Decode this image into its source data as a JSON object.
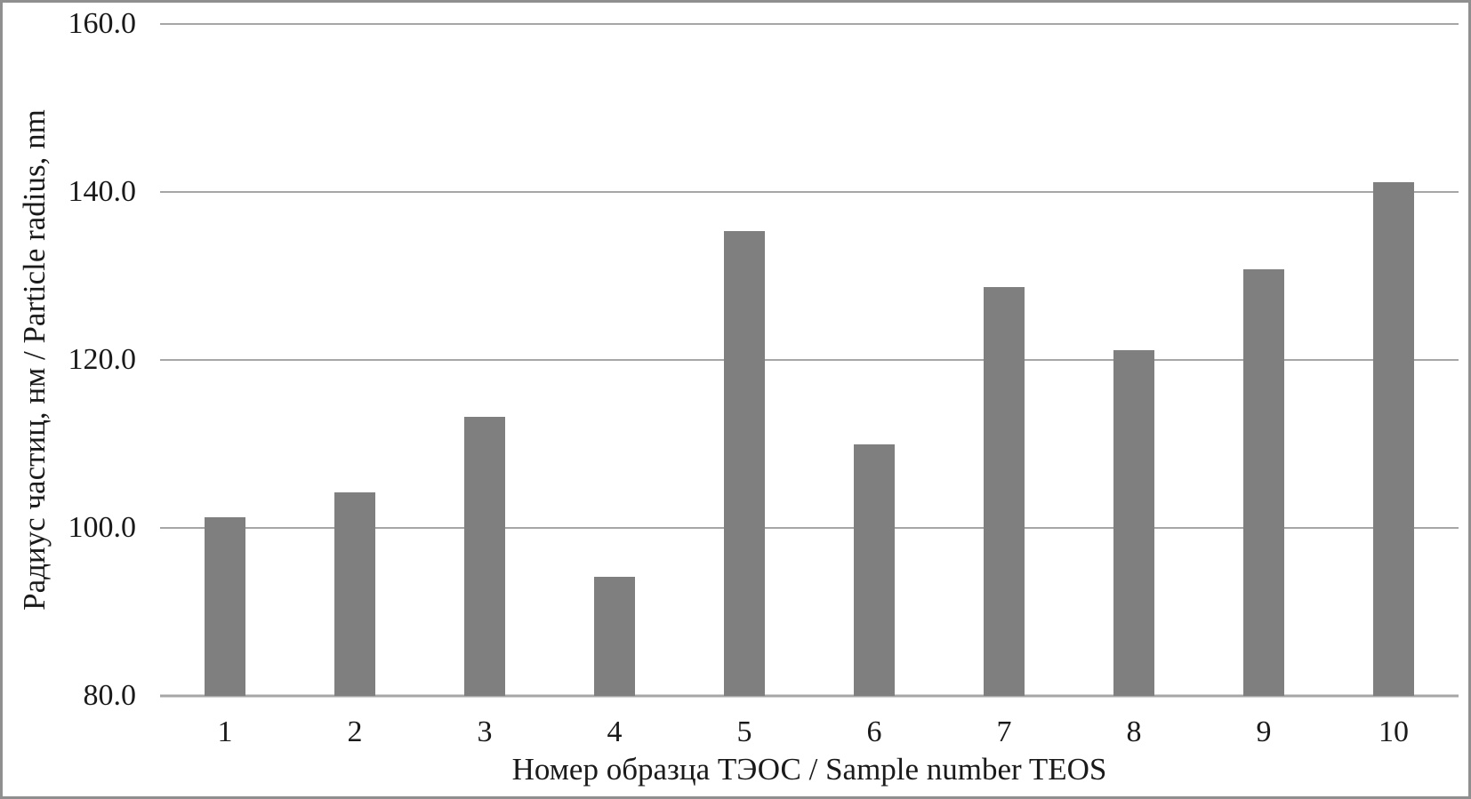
{
  "chart_data": {
    "type": "bar",
    "title": "",
    "xlabel": "Номер образца ТЭОС / Sample number TEOS",
    "ylabel": "Радиус частиц, нм / Particle radius, nm",
    "categories": [
      "1",
      "2",
      "3",
      "4",
      "5",
      "6",
      "7",
      "8",
      "9",
      "10"
    ],
    "values": [
      101.3,
      104.2,
      113.2,
      94.2,
      135.3,
      110.0,
      128.7,
      121.2,
      130.8,
      141.2
    ],
    "ylim": [
      80,
      160
    ],
    "yticks": [
      80,
      100,
      120,
      140,
      160
    ],
    "ytick_labels": [
      "80.0",
      "100.0",
      "120.0",
      "140.0",
      "160.0"
    ],
    "grid": true,
    "legend": false,
    "bar_color": "#7f7f7f",
    "gridline_color": "#a6a6a6",
    "frame_color": "#8f8f8f",
    "text_color": "#1a1a1a"
  }
}
